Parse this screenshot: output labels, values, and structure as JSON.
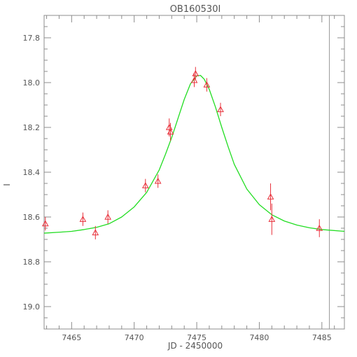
{
  "chart_data": {
    "type": "scatter",
    "title": "OB160530I",
    "xlabel": "JD - 2450000",
    "ylabel": "I",
    "xlim": [
      7462.8,
      7486.8
    ],
    "ylim": [
      19.1,
      17.7
    ],
    "y_inverted": true,
    "grid": false,
    "x_ticks": [
      7465,
      7470,
      7475,
      7480,
      7485
    ],
    "x_tick_labels": [
      "7465",
      "7470",
      "7475",
      "7480",
      "7485"
    ],
    "x_minor_step": 1,
    "y_ticks": [
      17.8,
      18.0,
      18.2,
      18.4,
      18.6,
      18.8,
      19.0
    ],
    "y_tick_labels": [
      "17.8",
      "18.0",
      "18.2",
      "18.4",
      "18.6",
      "18.8",
      "19.0"
    ],
    "y_minor_step": 0.05,
    "vertical_marker_x": 7485.6,
    "colors": {
      "axes": "#8c8c8c",
      "data": "#e8303a",
      "model": "#22dd22",
      "marker_line": "#999999"
    },
    "points": [
      {
        "x": 7462.9,
        "y": 18.63,
        "err": 0.03
      },
      {
        "x": 7465.9,
        "y": 18.61,
        "err": 0.03
      },
      {
        "x": 7466.9,
        "y": 18.67,
        "err": 0.03
      },
      {
        "x": 7467.9,
        "y": 18.6,
        "err": 0.03
      },
      {
        "x": 7470.9,
        "y": 18.46,
        "err": 0.03
      },
      {
        "x": 7471.9,
        "y": 18.44,
        "err": 0.03
      },
      {
        "x": 7472.8,
        "y": 18.2,
        "err": 0.04
      },
      {
        "x": 7472.9,
        "y": 18.22,
        "err": 0.04
      },
      {
        "x": 7474.8,
        "y": 17.99,
        "err": 0.03
      },
      {
        "x": 7474.9,
        "y": 17.96,
        "err": 0.03
      },
      {
        "x": 7475.8,
        "y": 18.01,
        "err": 0.03
      },
      {
        "x": 7476.9,
        "y": 18.12,
        "err": 0.03
      },
      {
        "x": 7480.9,
        "y": 18.51,
        "err": 0.06
      },
      {
        "x": 7481.0,
        "y": 18.61,
        "err": 0.07
      },
      {
        "x": 7484.8,
        "y": 18.65,
        "err": 0.04
      }
    ],
    "model": {
      "name": "",
      "curve": [
        {
          "x": 7462.8,
          "y": 18.672
        },
        {
          "x": 7464.0,
          "y": 18.668
        },
        {
          "x": 7465.0,
          "y": 18.664
        },
        {
          "x": 7466.0,
          "y": 18.656
        },
        {
          "x": 7467.0,
          "y": 18.646
        },
        {
          "x": 7468.0,
          "y": 18.63
        },
        {
          "x": 7469.0,
          "y": 18.6
        },
        {
          "x": 7470.0,
          "y": 18.555
        },
        {
          "x": 7471.0,
          "y": 18.49
        },
        {
          "x": 7472.0,
          "y": 18.39
        },
        {
          "x": 7472.5,
          "y": 18.32
        },
        {
          "x": 7473.0,
          "y": 18.245
        },
        {
          "x": 7473.5,
          "y": 18.16
        },
        {
          "x": 7474.0,
          "y": 18.075
        },
        {
          "x": 7474.5,
          "y": 18.005
        },
        {
          "x": 7475.0,
          "y": 17.97
        },
        {
          "x": 7475.3,
          "y": 17.968
        },
        {
          "x": 7475.6,
          "y": 17.985
        },
        {
          "x": 7476.0,
          "y": 18.03
        },
        {
          "x": 7476.5,
          "y": 18.11
        },
        {
          "x": 7477.0,
          "y": 18.2
        },
        {
          "x": 7477.5,
          "y": 18.285
        },
        {
          "x": 7478.0,
          "y": 18.365
        },
        {
          "x": 7479.0,
          "y": 18.475
        },
        {
          "x": 7480.0,
          "y": 18.545
        },
        {
          "x": 7481.0,
          "y": 18.59
        },
        {
          "x": 7482.0,
          "y": 18.618
        },
        {
          "x": 7483.0,
          "y": 18.636
        },
        {
          "x": 7484.0,
          "y": 18.648
        },
        {
          "x": 7485.0,
          "y": 18.656
        },
        {
          "x": 7486.8,
          "y": 18.664
        }
      ]
    }
  }
}
